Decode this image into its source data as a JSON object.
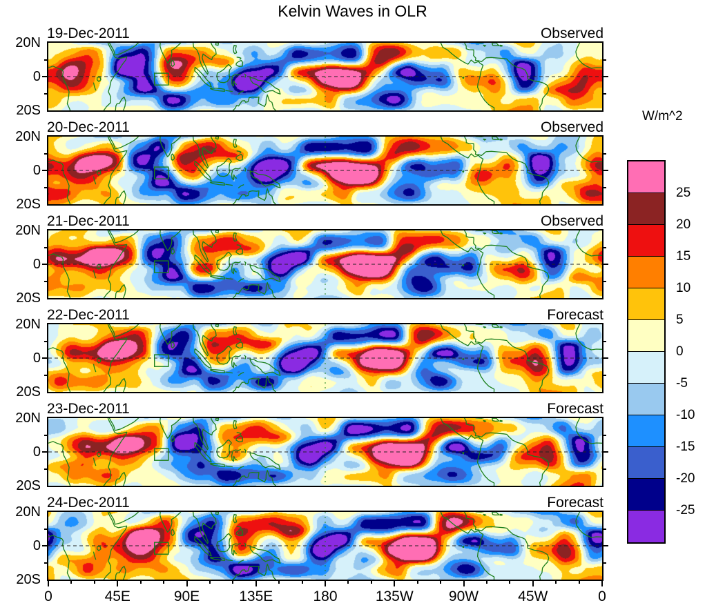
{
  "title": "Kelvin Waves in OLR",
  "colorbar": {
    "units_label": "W/m^2",
    "tick_labels": [
      "25",
      "20",
      "15",
      "10",
      "5",
      "0",
      "-5",
      "-10",
      "-15",
      "-20",
      "-25"
    ],
    "colors_top_to_bottom": [
      "#FF6EB4",
      "#8B2323",
      "#EE1010",
      "#FF7F00",
      "#FFC30B",
      "#FFFFC2",
      "#D6F1FA",
      "#99C9EF",
      "#1E90FF",
      "#3A5FCD",
      "#00008B",
      "#8A2BE2"
    ]
  },
  "axes": {
    "lat_tick_labels": [
      "20N",
      "0",
      "20S"
    ],
    "lon_tick_labels": [
      "0",
      "45E",
      "90E",
      "135E",
      "180",
      "135W",
      "90W",
      "45W",
      "0"
    ]
  },
  "panels": [
    {
      "date": "19-Dec-2011",
      "type": "Observed"
    },
    {
      "date": "20-Dec-2011",
      "type": "Observed"
    },
    {
      "date": "21-Dec-2011",
      "type": "Observed"
    },
    {
      "date": "22-Dec-2011",
      "type": "Forecast"
    },
    {
      "date": "23-Dec-2011",
      "type": "Forecast"
    },
    {
      "date": "24-Dec-2011",
      "type": "Forecast"
    }
  ],
  "map_style": {
    "coastline_color": "#1b7f1b",
    "equator_line": "dashed black at 0 latitude",
    "dateline_line": "dashed green at 180 longitude",
    "highlight_box_color": "#1b7f1b"
  },
  "chart_data": {
    "type": "heatmap",
    "subtype": "filled_contour_longitude_latitude_maps",
    "title": "Kelvin Waves in OLR",
    "units": "W/m^2",
    "contour_levels": [
      -25,
      -20,
      -15,
      -10,
      -5,
      0,
      5,
      10,
      15,
      20,
      25
    ],
    "level_colors_low_to_high": [
      "#8A2BE2",
      "#00008B",
      "#3A5FCD",
      "#1E90FF",
      "#99C9EF",
      "#D6F1FA",
      "#FFFFC2",
      "#FFC30B",
      "#FF7F00",
      "#EE1010",
      "#8B2323",
      "#FF6EB4"
    ],
    "values_range_approx_wm2": [
      -25,
      25
    ],
    "lon_axis": {
      "range_deg": [
        0,
        360
      ],
      "tick_labels": [
        "0",
        "45E",
        "90E",
        "135E",
        "180",
        "135W",
        "90W",
        "45W",
        "0"
      ],
      "tick_spacing_deg": 45,
      "minor_tick_spacing_deg": 15
    },
    "lat_axis": {
      "range_deg": [
        -20,
        20
      ],
      "tick_labels": [
        "20N",
        "0",
        "20S"
      ]
    },
    "panels": [
      {
        "date": "19-Dec-2011",
        "source": "Observed"
      },
      {
        "date": "20-Dec-2011",
        "source": "Observed"
      },
      {
        "date": "21-Dec-2011",
        "source": "Observed"
      },
      {
        "date": "22-Dec-2011",
        "source": "Forecast"
      },
      {
        "date": "23-Dec-2011",
        "source": "Forecast"
      },
      {
        "date": "24-Dec-2011",
        "source": "Forecast"
      }
    ],
    "reference_lines": {
      "equator_dashed": true,
      "dateline_180_dashed": true
    },
    "highlight_box": {
      "lon_range_deg": [
        69,
        78
      ],
      "lat_range_deg": [
        -5,
        2
      ],
      "style": "green outline"
    },
    "legend_position": "right",
    "grid": false
  }
}
